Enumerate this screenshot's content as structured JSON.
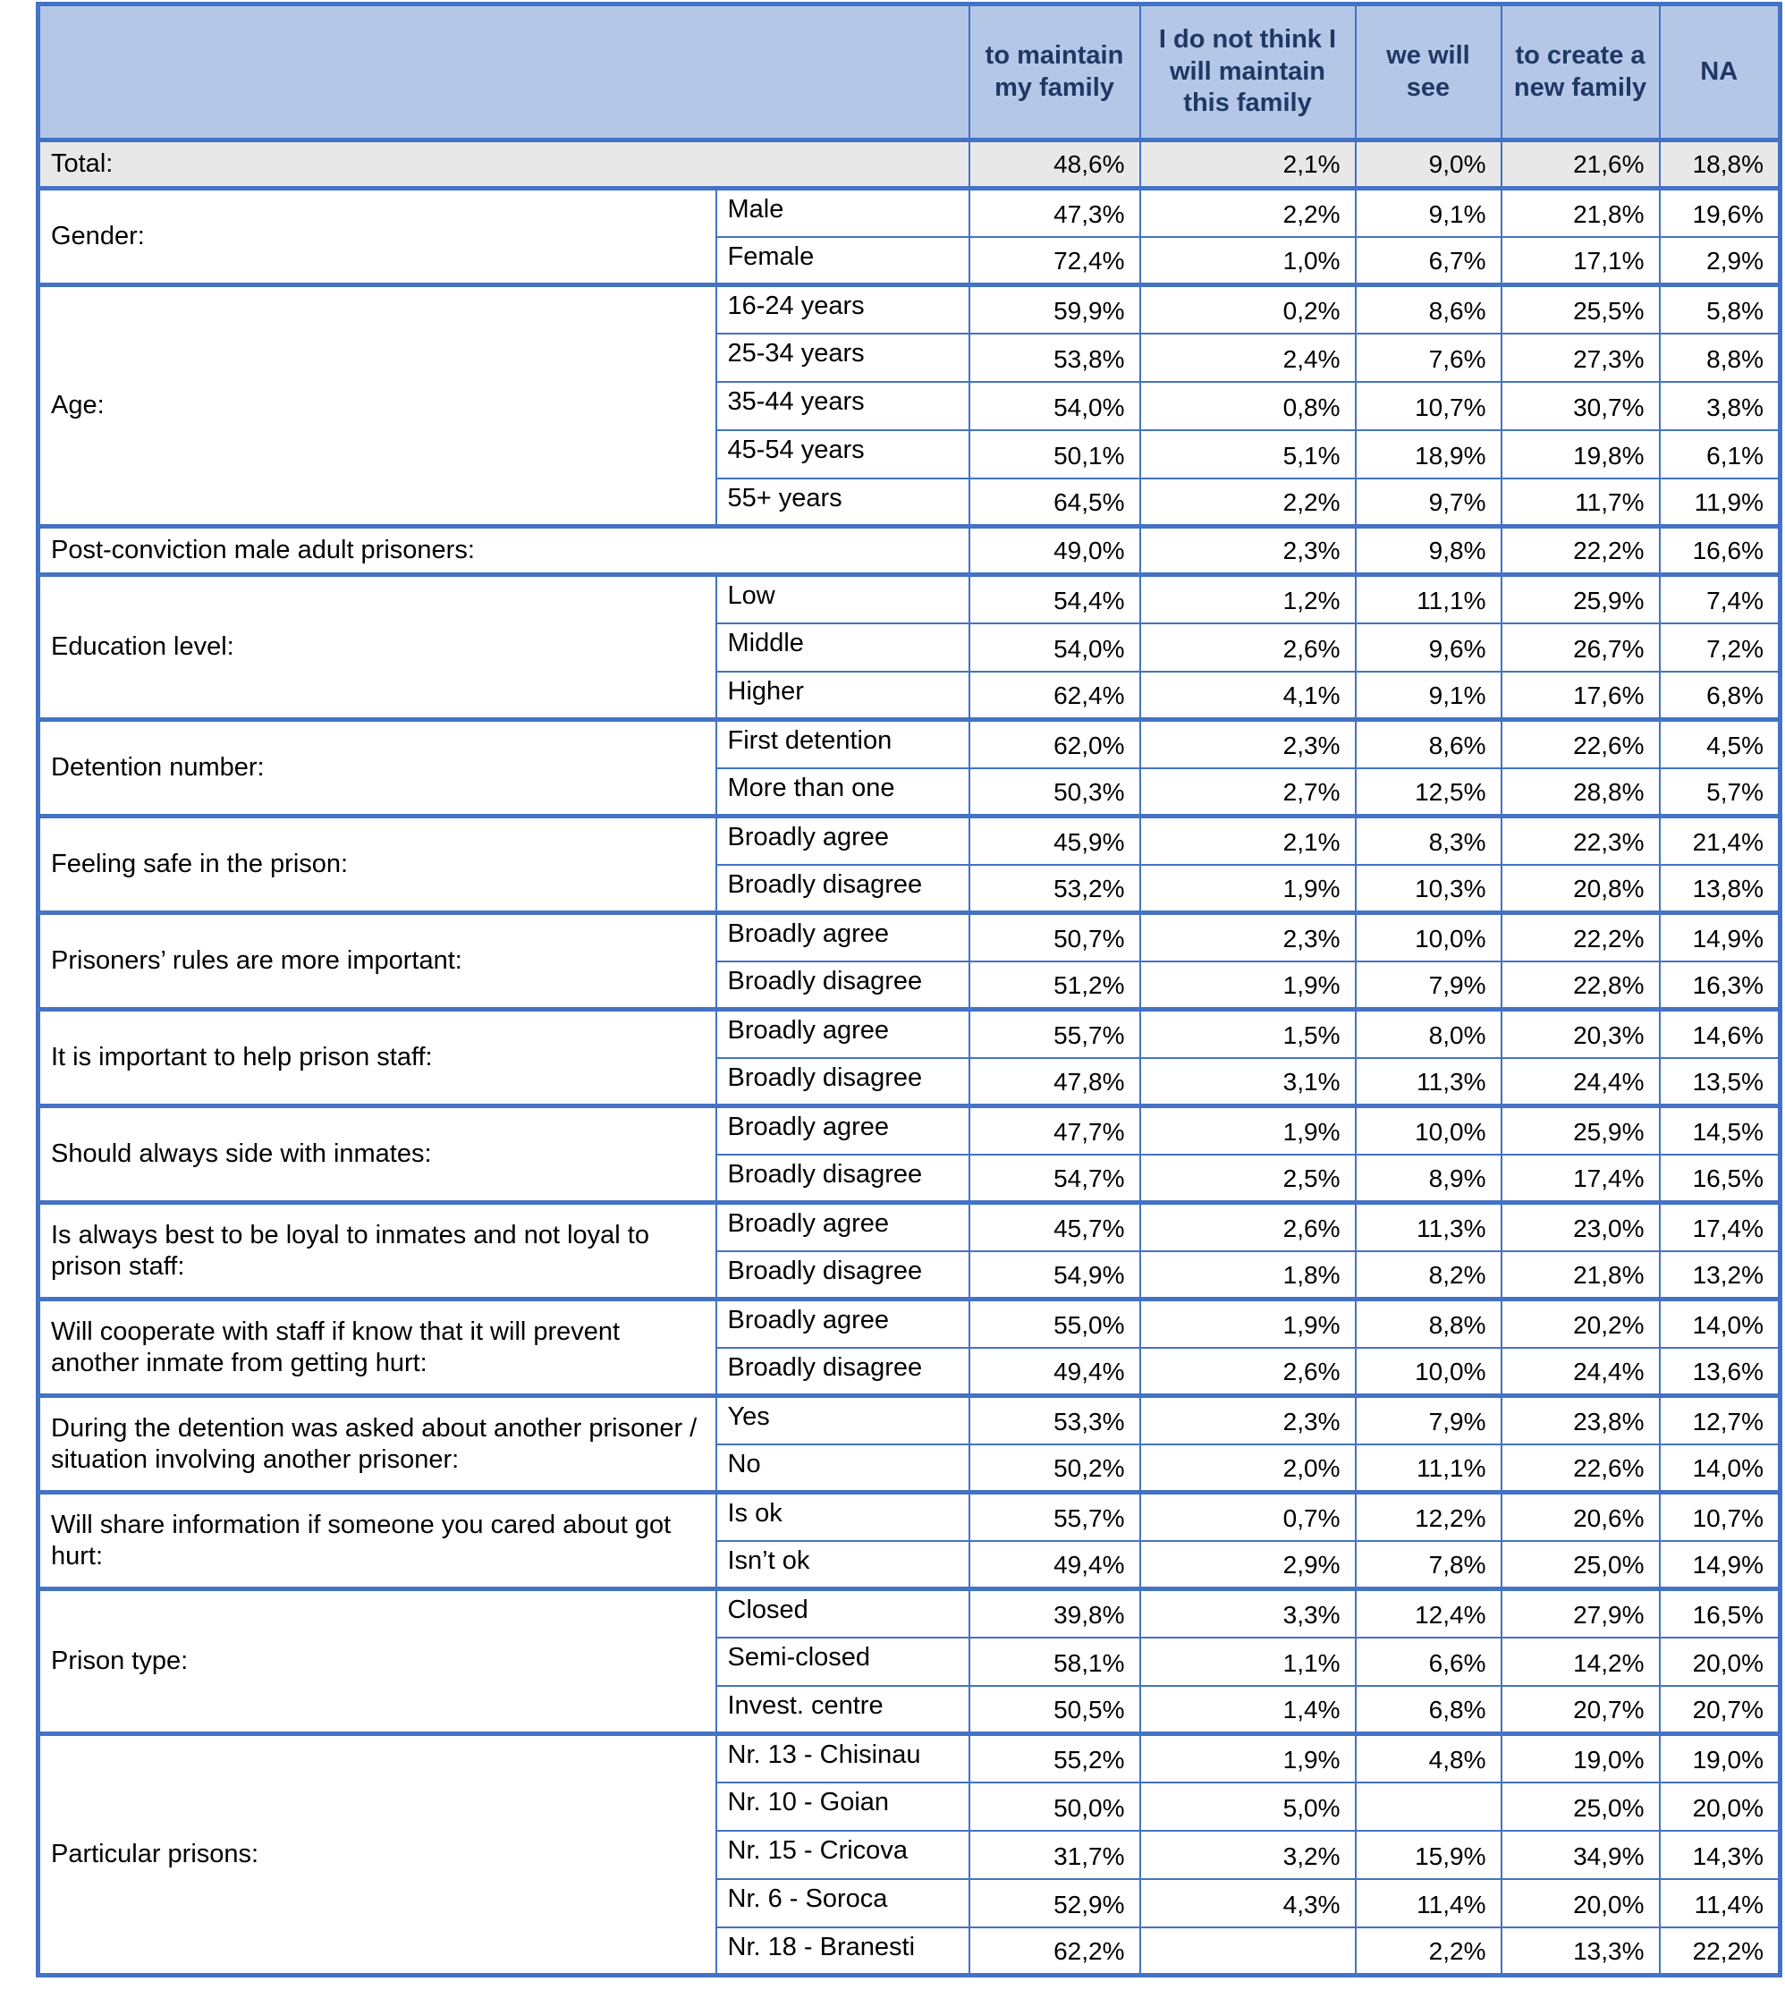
{
  "colors": {
    "border": "#4472c4",
    "header_bg": "#b4c7e7",
    "header_text": "#1f3864",
    "shaded_bg": "#e8e8e8"
  },
  "chart_data": {
    "type": "table",
    "title": "",
    "columns": [
      "to maintain my family",
      "I do not think I will maintain this family",
      "we will see",
      "to create a new family",
      "NA"
    ],
    "groups": [
      {
        "label": "Total:",
        "full": true,
        "shaded": true,
        "rows": [
          {
            "values": [
              "48,6%",
              "2,1%",
              "9,0%",
              "21,6%",
              "18,8%"
            ]
          }
        ]
      },
      {
        "label": "Gender:",
        "rows": [
          {
            "sub": "Male",
            "values": [
              "47,3%",
              "2,2%",
              "9,1%",
              "21,8%",
              "19,6%"
            ]
          },
          {
            "sub": "Female",
            "values": [
              "72,4%",
              "1,0%",
              "6,7%",
              "17,1%",
              "2,9%"
            ]
          }
        ]
      },
      {
        "label": "Age:",
        "rows": [
          {
            "sub": "16-24 years",
            "values": [
              "59,9%",
              "0,2%",
              "8,6%",
              "25,5%",
              "5,8%"
            ]
          },
          {
            "sub": "25-34 years",
            "values": [
              "53,8%",
              "2,4%",
              "7,6%",
              "27,3%",
              "8,8%"
            ]
          },
          {
            "sub": "35-44 years",
            "values": [
              "54,0%",
              "0,8%",
              "10,7%",
              "30,7%",
              "3,8%"
            ]
          },
          {
            "sub": "45-54 years",
            "values": [
              "50,1%",
              "5,1%",
              "18,9%",
              "19,8%",
              "6,1%"
            ]
          },
          {
            "sub": "55+ years",
            "values": [
              "64,5%",
              "2,2%",
              "9,7%",
              "11,7%",
              "11,9%"
            ]
          }
        ]
      },
      {
        "label": "Post-conviction male adult prisoners:",
        "full": true,
        "rows": [
          {
            "values": [
              "49,0%",
              "2,3%",
              "9,8%",
              "22,2%",
              "16,6%"
            ]
          }
        ]
      },
      {
        "label": "Education level:",
        "rows": [
          {
            "sub": "Low",
            "values": [
              "54,4%",
              "1,2%",
              "11,1%",
              "25,9%",
              "7,4%"
            ]
          },
          {
            "sub": "Middle",
            "values": [
              "54,0%",
              "2,6%",
              "9,6%",
              "26,7%",
              "7,2%"
            ]
          },
          {
            "sub": "Higher",
            "values": [
              "62,4%",
              "4,1%",
              "9,1%",
              "17,6%",
              "6,8%"
            ]
          }
        ]
      },
      {
        "label": "Detention number:",
        "rows": [
          {
            "sub": "First detention",
            "values": [
              "62,0%",
              "2,3%",
              "8,6%",
              "22,6%",
              "4,5%"
            ]
          },
          {
            "sub": "More than one",
            "values": [
              "50,3%",
              "2,7%",
              "12,5%",
              "28,8%",
              "5,7%"
            ]
          }
        ]
      },
      {
        "label": "Feeling safe in the prison:",
        "rows": [
          {
            "sub": "Broadly agree",
            "values": [
              "45,9%",
              "2,1%",
              "8,3%",
              "22,3%",
              "21,4%"
            ]
          },
          {
            "sub": "Broadly disagree",
            "values": [
              "53,2%",
              "1,9%",
              "10,3%",
              "20,8%",
              "13,8%"
            ]
          }
        ]
      },
      {
        "label": "Prisoners’ rules are more important:",
        "rows": [
          {
            "sub": "Broadly agree",
            "values": [
              "50,7%",
              "2,3%",
              "10,0%",
              "22,2%",
              "14,9%"
            ]
          },
          {
            "sub": "Broadly disagree",
            "values": [
              "51,2%",
              "1,9%",
              "7,9%",
              "22,8%",
              "16,3%"
            ]
          }
        ]
      },
      {
        "label": "It is important to help prison staff:",
        "rows": [
          {
            "sub": "Broadly agree",
            "values": [
              "55,7%",
              "1,5%",
              "8,0%",
              "20,3%",
              "14,6%"
            ]
          },
          {
            "sub": "Broadly disagree",
            "values": [
              "47,8%",
              "3,1%",
              "11,3%",
              "24,4%",
              "13,5%"
            ]
          }
        ]
      },
      {
        "label": "Should always side with inmates:",
        "rows": [
          {
            "sub": "Broadly agree",
            "values": [
              "47,7%",
              "1,9%",
              "10,0%",
              "25,9%",
              "14,5%"
            ]
          },
          {
            "sub": "Broadly disagree",
            "values": [
              "54,7%",
              "2,5%",
              "8,9%",
              "17,4%",
              "16,5%"
            ]
          }
        ]
      },
      {
        "label": "Is always best to be loyal to inmates and not loyal to prison staff:",
        "rows": [
          {
            "sub": "Broadly agree",
            "values": [
              "45,7%",
              "2,6%",
              "11,3%",
              "23,0%",
              "17,4%"
            ]
          },
          {
            "sub": "Broadly disagree",
            "values": [
              "54,9%",
              "1,8%",
              "8,2%",
              "21,8%",
              "13,2%"
            ]
          }
        ]
      },
      {
        "label": "Will cooperate with staff if know that it will prevent another inmate from getting hurt:",
        "rows": [
          {
            "sub": "Broadly agree",
            "values": [
              "55,0%",
              "1,9%",
              "8,8%",
              "20,2%",
              "14,0%"
            ]
          },
          {
            "sub": "Broadly disagree",
            "values": [
              "49,4%",
              "2,6%",
              "10,0%",
              "24,4%",
              "13,6%"
            ]
          }
        ]
      },
      {
        "label": "During the detention was asked about another prisoner / situation involving another prisoner:",
        "rows": [
          {
            "sub": "Yes",
            "values": [
              "53,3%",
              "2,3%",
              "7,9%",
              "23,8%",
              "12,7%"
            ]
          },
          {
            "sub": "No",
            "values": [
              "50,2%",
              "2,0%",
              "11,1%",
              "22,6%",
              "14,0%"
            ]
          }
        ]
      },
      {
        "label": "Will share information if someone you cared about got hurt:",
        "rows": [
          {
            "sub": "Is ok",
            "values": [
              "55,7%",
              "0,7%",
              "12,2%",
              "20,6%",
              "10,7%"
            ]
          },
          {
            "sub": "Isn’t ok",
            "values": [
              "49,4%",
              "2,9%",
              "7,8%",
              "25,0%",
              "14,9%"
            ]
          }
        ]
      },
      {
        "label": "Prison type:",
        "rows": [
          {
            "sub": "Closed",
            "values": [
              "39,8%",
              "3,3%",
              "12,4%",
              "27,9%",
              "16,5%"
            ]
          },
          {
            "sub": "Semi-closed",
            "values": [
              "58,1%",
              "1,1%",
              "6,6%",
              "14,2%",
              "20,0%"
            ]
          },
          {
            "sub": "Invest. centre",
            "values": [
              "50,5%",
              "1,4%",
              "6,8%",
              "20,7%",
              "20,7%"
            ]
          }
        ]
      },
      {
        "label": "Particular prisons:",
        "rows": [
          {
            "sub": "Nr. 13 - Chisinau",
            "values": [
              "55,2%",
              "1,9%",
              "4,8%",
              "19,0%",
              "19,0%"
            ]
          },
          {
            "sub": "Nr. 10 - Goian",
            "values": [
              "50,0%",
              "5,0%",
              "",
              "25,0%",
              "20,0%"
            ]
          },
          {
            "sub": "Nr. 15 - Cricova",
            "values": [
              "31,7%",
              "3,2%",
              "15,9%",
              "34,9%",
              "14,3%"
            ]
          },
          {
            "sub": "Nr. 6 - Soroca",
            "values": [
              "52,9%",
              "4,3%",
              "11,4%",
              "20,0%",
              "11,4%"
            ]
          },
          {
            "sub": "Nr. 18 - Branesti",
            "values": [
              "62,2%",
              "",
              "2,2%",
              "13,3%",
              "22,2%"
            ]
          }
        ]
      }
    ]
  }
}
